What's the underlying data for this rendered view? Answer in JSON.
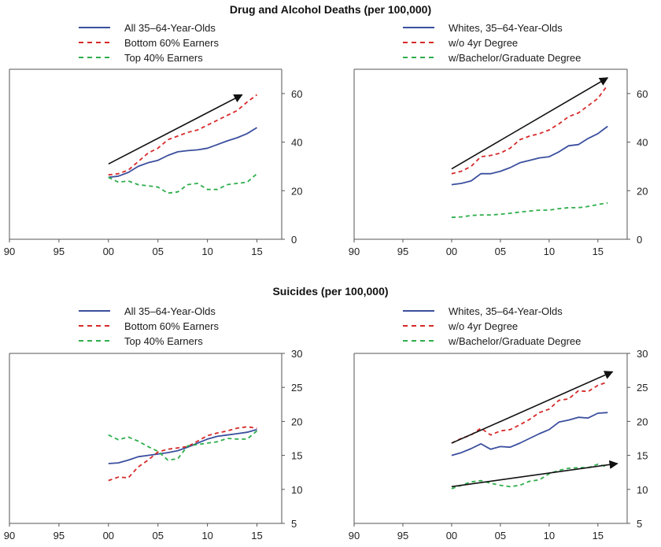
{
  "colors": {
    "blue": "#3b4f9e",
    "red": "#d62a2a",
    "green": "#2fae4c",
    "arrow": "#111111",
    "frame": "#555555"
  },
  "sections": [
    {
      "title": "Drug and Alcohol Deaths (per 100,000)"
    },
    {
      "title": "Suicides (per 100,000)"
    }
  ],
  "chart_data": [
    {
      "type": "line",
      "title": "Drug and Alcohol Deaths (per 100,000)",
      "subtitle": "",
      "xlim": [
        1990,
        2017.5
      ],
      "ylim": [
        0,
        70
      ],
      "xticks": [
        1990,
        1995,
        2000,
        2005,
        2010,
        2015
      ],
      "xtick_labels": [
        "90",
        "95",
        "00",
        "05",
        "10",
        "15"
      ],
      "yticks": [
        0,
        20,
        40,
        60
      ],
      "ytick_labels": [
        "0",
        "20",
        "40",
        "60"
      ],
      "grid": false,
      "legend_position": "top",
      "series": [
        {
          "name": "All 35–64-Year-Olds",
          "style": "solid",
          "color_key": "blue",
          "x": [
            2000,
            2001,
            2002,
            2003,
            2004,
            2005,
            2006,
            2007,
            2008,
            2009,
            2010,
            2011,
            2012,
            2013,
            2014,
            2015
          ],
          "values": [
            25.5,
            26,
            27.5,
            30,
            31.5,
            32.5,
            34.5,
            36,
            36.5,
            36.8,
            37.5,
            39,
            40.5,
            41.8,
            43.5,
            46
          ]
        },
        {
          "name": "Bottom 60% Earners",
          "style": "dashed",
          "color_key": "red",
          "x": [
            2000,
            2001,
            2002,
            2003,
            2004,
            2005,
            2006,
            2007,
            2008,
            2009,
            2010,
            2011,
            2012,
            2013,
            2014,
            2015
          ],
          "values": [
            26.5,
            27,
            28.5,
            32,
            35.5,
            37.5,
            41,
            42.5,
            44,
            45,
            47,
            49,
            51,
            53,
            56.5,
            59.5
          ]
        },
        {
          "name": "Top 40% Earners",
          "style": "dashed",
          "color_key": "green",
          "x": [
            2000,
            2001,
            2002,
            2003,
            2004,
            2005,
            2006,
            2007,
            2008,
            2009,
            2010,
            2011,
            2012,
            2013,
            2014,
            2015
          ],
          "values": [
            25.5,
            23.5,
            24,
            22.5,
            22,
            21.5,
            19,
            19.5,
            22.5,
            23,
            20.5,
            20.5,
            22.5,
            23,
            23.5,
            27
          ]
        }
      ],
      "arrows": [
        {
          "from": [
            2000,
            31
          ],
          "to": [
            2013.5,
            59.5
          ]
        }
      ]
    },
    {
      "type": "line",
      "title": "Drug and Alcohol Deaths (per 100,000)",
      "subtitle": "",
      "xlim": [
        1990,
        2018
      ],
      "ylim": [
        0,
        70
      ],
      "xticks": [
        1990,
        1995,
        2000,
        2005,
        2010,
        2015
      ],
      "xtick_labels": [
        "90",
        "95",
        "00",
        "05",
        "10",
        "15"
      ],
      "yticks": [
        0,
        20,
        40,
        60
      ],
      "ytick_labels": [
        "0",
        "20",
        "40",
        "60"
      ],
      "grid": false,
      "legend_position": "top",
      "series": [
        {
          "name": "Whites, 35–64-Year-Olds",
          "style": "solid",
          "color_key": "blue",
          "x": [
            2000,
            2001,
            2002,
            2003,
            2004,
            2005,
            2006,
            2007,
            2008,
            2009,
            2010,
            2011,
            2012,
            2013,
            2014,
            2015,
            2016
          ],
          "values": [
            22.5,
            23,
            24,
            27,
            27,
            28,
            29.5,
            31.5,
            32.5,
            33.5,
            34,
            36,
            38.5,
            39,
            41.5,
            43.5,
            46.5
          ]
        },
        {
          "name": "w/o 4yr Degree",
          "style": "dashed",
          "color_key": "red",
          "x": [
            2000,
            2001,
            2002,
            2003,
            2004,
            2005,
            2006,
            2007,
            2008,
            2009,
            2010,
            2011,
            2012,
            2013,
            2014,
            2015,
            2016
          ],
          "values": [
            27,
            28,
            30,
            34,
            34.5,
            35.5,
            37.5,
            41,
            42.5,
            43.5,
            45,
            47.5,
            50.5,
            52,
            55,
            58,
            63.5
          ]
        },
        {
          "name": "w/Bachelor/Graduate Degree",
          "style": "dashed",
          "color_key": "green",
          "x": [
            2000,
            2001,
            2002,
            2003,
            2004,
            2005,
            2006,
            2007,
            2008,
            2009,
            2010,
            2011,
            2012,
            2013,
            2014,
            2015,
            2016
          ],
          "values": [
            9,
            9.2,
            9.8,
            10,
            10,
            10.3,
            10.7,
            11.2,
            11.6,
            12,
            12,
            12.6,
            13,
            13,
            13.5,
            14.3,
            15
          ]
        }
      ],
      "arrows": [
        {
          "from": [
            2000,
            29
          ],
          "to": [
            2016,
            66.5
          ]
        }
      ]
    },
    {
      "type": "line",
      "title": "Suicides (per 100,000)",
      "subtitle": "",
      "xlim": [
        1990,
        2017.5
      ],
      "ylim": [
        5,
        30
      ],
      "xticks": [
        1990,
        1995,
        2000,
        2005,
        2010,
        2015
      ],
      "xtick_labels": [
        "90",
        "95",
        "00",
        "05",
        "10",
        "15"
      ],
      "yticks": [
        5,
        10,
        15,
        20,
        25,
        30
      ],
      "ytick_labels": [
        "5",
        "10",
        "15",
        "20",
        "25",
        "30"
      ],
      "grid": false,
      "legend_position": "top",
      "series": [
        {
          "name": "All 35–64-Year-Olds",
          "style": "solid",
          "color_key": "blue",
          "x": [
            2000,
            2001,
            2002,
            2003,
            2004,
            2005,
            2006,
            2007,
            2008,
            2009,
            2010,
            2011,
            2012,
            2013,
            2014,
            2015
          ],
          "values": [
            13.8,
            13.9,
            14.3,
            14.8,
            15,
            15.2,
            15.4,
            15.7,
            16.2,
            16.8,
            17.4,
            17.8,
            18,
            18.2,
            18.4,
            18.8
          ]
        },
        {
          "name": "Bottom 60% Earners",
          "style": "dashed",
          "color_key": "red",
          "x": [
            2000,
            2001,
            2002,
            2003,
            2004,
            2005,
            2006,
            2007,
            2008,
            2009,
            2010,
            2011,
            2012,
            2013,
            2014,
            2015
          ],
          "values": [
            11.3,
            11.8,
            11.7,
            13.3,
            14.3,
            15.5,
            15.9,
            16.1,
            16.3,
            17.1,
            17.9,
            18.3,
            18.6,
            19,
            19.2,
            19
          ]
        },
        {
          "name": "Top 40% Earners",
          "style": "dashed",
          "color_key": "green",
          "x": [
            2000,
            2001,
            2002,
            2003,
            2004,
            2005,
            2006,
            2007,
            2008,
            2009,
            2010,
            2011,
            2012,
            2013,
            2014,
            2015
          ],
          "values": [
            18,
            17.3,
            17.7,
            17.1,
            16.3,
            15.6,
            14.3,
            14.5,
            16.4,
            16.6,
            16.8,
            17,
            17.5,
            17.4,
            17.4,
            18.6
          ]
        }
      ],
      "arrows": []
    },
    {
      "type": "line",
      "title": "Suicides (per 100,000)",
      "subtitle": "",
      "xlim": [
        1990,
        2018
      ],
      "ylim": [
        5,
        30
      ],
      "xticks": [
        1990,
        1995,
        2000,
        2005,
        2010,
        2015
      ],
      "xtick_labels": [
        "90",
        "95",
        "00",
        "05",
        "10",
        "15"
      ],
      "yticks": [
        5,
        10,
        15,
        20,
        25,
        30
      ],
      "ytick_labels": [
        "5",
        "10",
        "15",
        "20",
        "25",
        "30"
      ],
      "grid": false,
      "legend_position": "top",
      "series": [
        {
          "name": "Whites, 35–64-Year-Olds",
          "style": "solid",
          "color_key": "blue",
          "x": [
            2000,
            2001,
            2002,
            2003,
            2004,
            2005,
            2006,
            2007,
            2008,
            2009,
            2010,
            2011,
            2012,
            2013,
            2014,
            2015,
            2016
          ],
          "values": [
            15,
            15.4,
            16,
            16.7,
            15.9,
            16.3,
            16.2,
            16.8,
            17.5,
            18.2,
            18.8,
            19.9,
            20.2,
            20.6,
            20.5,
            21.2,
            21.3
          ]
        },
        {
          "name": "w/o 4yr Degree",
          "style": "dashed",
          "color_key": "red",
          "x": [
            2000,
            2001,
            2002,
            2003,
            2004,
            2005,
            2006,
            2007,
            2008,
            2009,
            2010,
            2011,
            2012,
            2013,
            2014,
            2015,
            2016
          ],
          "values": [
            16.8,
            17.5,
            18,
            19,
            18,
            18.6,
            18.8,
            19.5,
            20.3,
            21.3,
            21.8,
            23.1,
            23.3,
            24.5,
            24.4,
            25.3,
            25.8
          ]
        },
        {
          "name": "w/Bachelor/Graduate Degree",
          "style": "dashed",
          "color_key": "green",
          "x": [
            2000,
            2001,
            2002,
            2003,
            2004,
            2005,
            2006,
            2007,
            2008,
            2009,
            2010,
            2011,
            2012,
            2013,
            2014,
            2015,
            2016
          ],
          "values": [
            10.1,
            10.6,
            11.1,
            11.3,
            10.9,
            10.6,
            10.4,
            10.6,
            11.2,
            11.4,
            12.3,
            12.8,
            13.1,
            13.2,
            13.2,
            13.7,
            13.3
          ]
        }
      ],
      "arrows": [
        {
          "from": [
            2000,
            16.8
          ],
          "to": [
            2016.5,
            27.3
          ]
        },
        {
          "from": [
            2000,
            10.4
          ],
          "to": [
            2017,
            13.8
          ]
        }
      ]
    }
  ]
}
